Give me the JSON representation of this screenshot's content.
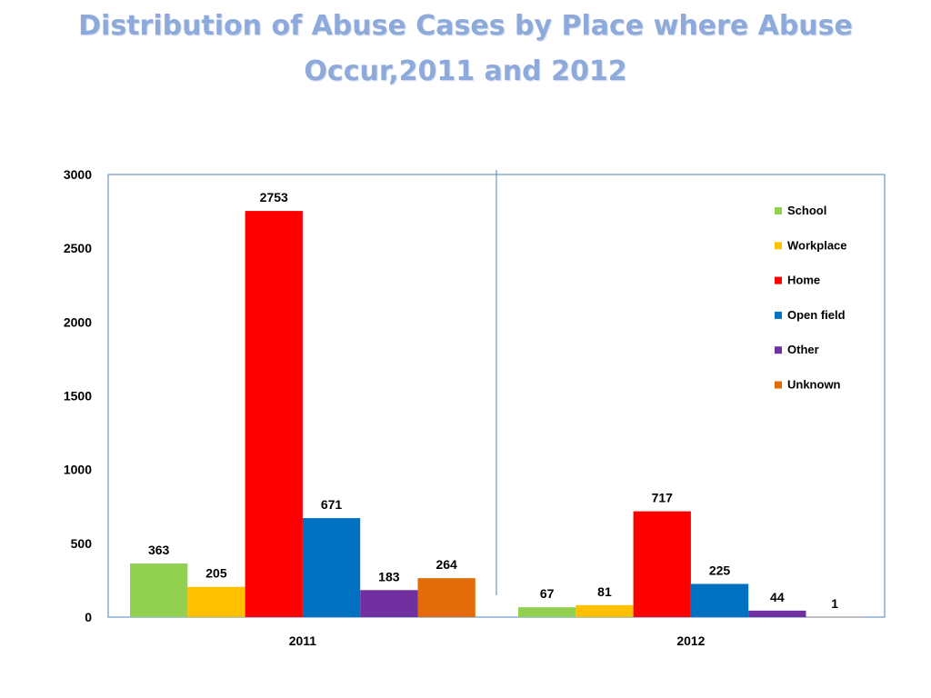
{
  "title": {
    "line1": "Distribution of Abuse Cases by Place where Abuse",
    "line2": "Occur,2011 and 2012"
  },
  "chart_data": {
    "type": "bar",
    "title": "Distribution of Abuse Cases by Place where Abuse Occur,2011 and 2012",
    "xlabel": "",
    "ylabel": "",
    "categories": [
      "2011",
      "2012"
    ],
    "ylim": [
      0,
      3000
    ],
    "yticks": [
      0,
      500,
      1000,
      1500,
      2000,
      2500,
      3000
    ],
    "grid": false,
    "legend_position": "top-right",
    "series": [
      {
        "name": "School",
        "color": "#92d050",
        "values": [
          363,
          67
        ]
      },
      {
        "name": "Workplace",
        "color": "#ffc000",
        "values": [
          205,
          81
        ]
      },
      {
        "name": "Home",
        "color": "#ff0000",
        "values": [
          2753,
          717
        ]
      },
      {
        "name": "Open field",
        "color": "#0070c0",
        "values": [
          671,
          225
        ]
      },
      {
        "name": "Other",
        "color": "#7030a0",
        "values": [
          183,
          44
        ]
      },
      {
        "name": "Unknown",
        "color": "#e36c09",
        "values": [
          264,
          1
        ]
      }
    ]
  }
}
